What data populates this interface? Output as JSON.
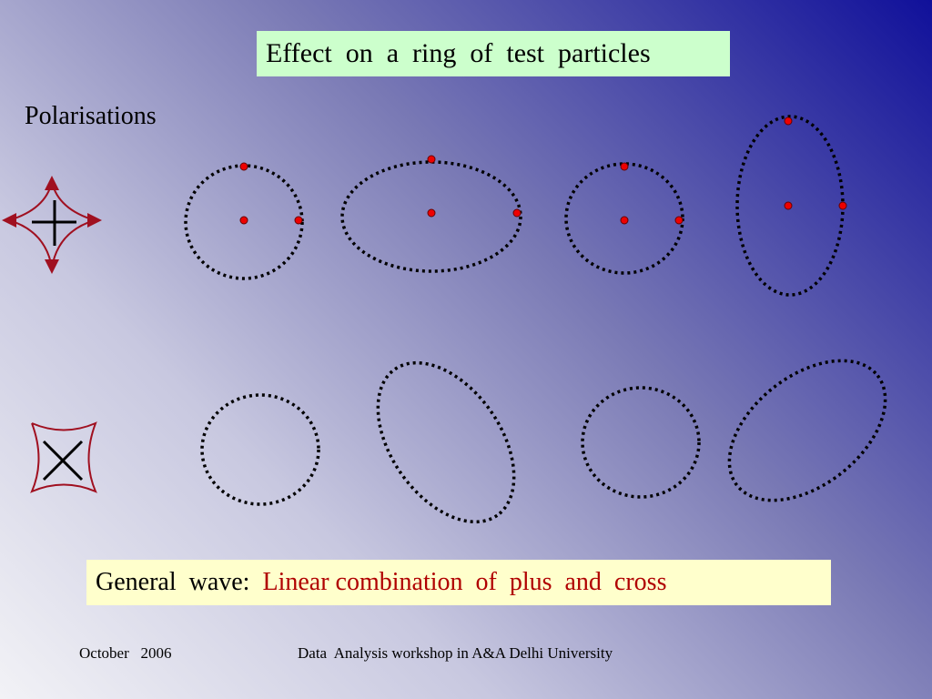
{
  "title": "Effect  on  a  ring  of  test  particles",
  "subtitle": "Polarisations",
  "footer_box": {
    "lead": "General  wave:",
    "highlight": "Linear combination  of  plus  and  cross"
  },
  "footer": {
    "date": "October   2006",
    "event": "Data  Analysis workshop in A&A Delhi University"
  }
}
